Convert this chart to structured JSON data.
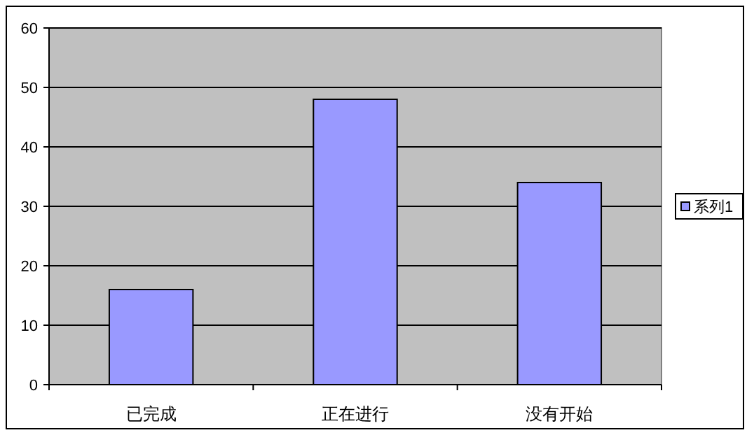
{
  "chart_data": {
    "type": "bar",
    "categories": [
      "已完成",
      "正在进行",
      "没有开始"
    ],
    "series": [
      {
        "name": "系列1",
        "color": "#9999ff",
        "values": [
          16,
          48,
          34
        ]
      }
    ],
    "ylim": [
      0,
      60
    ],
    "yticks": [
      0,
      10,
      20,
      30,
      40,
      50,
      60
    ],
    "grid": "y",
    "legend": "right"
  }
}
